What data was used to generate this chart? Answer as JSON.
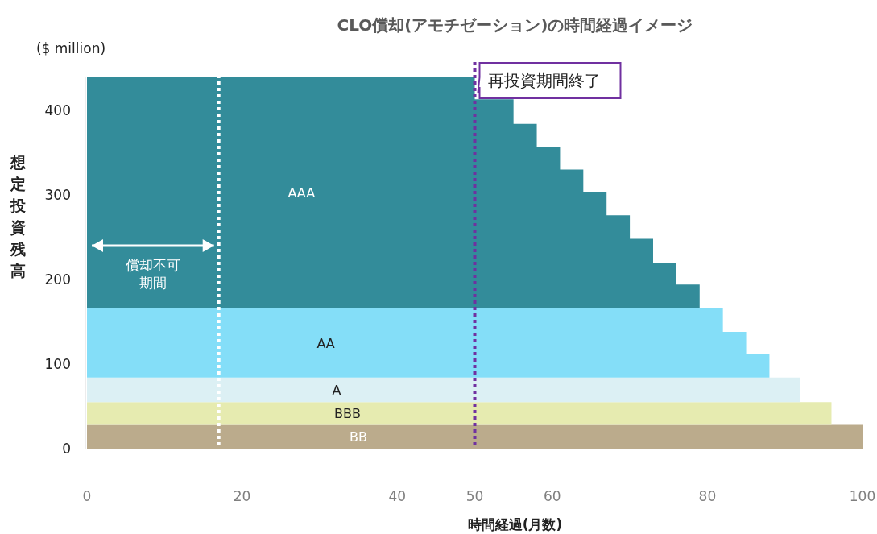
{
  "chart_data": {
    "type": "area",
    "stacked": true,
    "title": "CLO償却(アモチゼーション)の時間経過イメージ",
    "xlabel": "時間経過(月数)",
    "ylabel": "想定投資残高",
    "annotations": [
      "($ million)",
      "償却不可期間"
    ],
    "x": [
      0,
      50,
      50,
      55,
      55,
      58,
      58,
      61,
      61,
      64,
      64,
      67,
      67,
      70,
      70,
      73,
      73,
      76,
      76,
      79,
      79,
      82,
      82,
      85,
      85,
      88,
      88,
      92,
      92,
      96,
      96,
      100
    ],
    "series": [
      {
        "name": "BB",
        "color": "#bbab8c",
        "values": [
          28,
          28,
          28,
          28,
          28,
          28,
          28,
          28,
          28,
          28,
          28,
          28,
          28,
          28,
          28,
          28,
          28,
          28,
          28,
          28,
          28,
          28,
          28,
          28,
          28,
          28,
          28,
          28,
          28,
          28,
          28,
          28
        ]
      },
      {
        "name": "BBB",
        "color": "#e6ebb0",
        "values": [
          27,
          27,
          27,
          27,
          27,
          27,
          27,
          27,
          27,
          27,
          27,
          27,
          27,
          27,
          27,
          27,
          27,
          27,
          27,
          27,
          27,
          27,
          27,
          27,
          27,
          27,
          27,
          27,
          27,
          27,
          0,
          0
        ]
      },
      {
        "name": "A",
        "color": "#dcf0f4",
        "values": [
          29,
          29,
          29,
          29,
          29,
          29,
          29,
          29,
          29,
          29,
          29,
          29,
          29,
          29,
          29,
          29,
          29,
          29,
          29,
          29,
          29,
          29,
          29,
          29,
          29,
          29,
          29,
          29,
          0,
          0,
          0,
          0
        ]
      },
      {
        "name": "AA",
        "color": "#84def8",
        "values": [
          82,
          82,
          82,
          82,
          82,
          82,
          82,
          82,
          82,
          82,
          82,
          82,
          82,
          82,
          82,
          82,
          82,
          82,
          82,
          82,
          82,
          82,
          54,
          54,
          28,
          28,
          0,
          0,
          0,
          0,
          0,
          0
        ]
      },
      {
        "name": "AAA",
        "color": "#338c9a",
        "values": [
          273,
          273,
          247,
          247,
          218,
          218,
          191,
          191,
          164,
          164,
          137,
          137,
          110,
          110,
          82,
          82,
          54,
          54,
          28,
          28,
          0,
          0,
          0,
          0,
          0,
          0,
          0,
          0,
          0,
          0,
          0,
          0
        ]
      }
    ],
    "xlim": [
      0,
      100
    ],
    "xticks": [
      0,
      20,
      40,
      50,
      60,
      80,
      100
    ],
    "ylim": [
      0,
      440
    ],
    "yticks": [
      0,
      100,
      200,
      300,
      400
    ],
    "ref_lines": [
      {
        "axis": "x",
        "value": 17,
        "color": "#ffffff",
        "line_style": "dotted",
        "label": null
      },
      {
        "axis": "x",
        "value": 50,
        "color": "#7030a0",
        "line_style": "dotted",
        "label": "再投資期間終了"
      }
    ],
    "grid": false
  }
}
